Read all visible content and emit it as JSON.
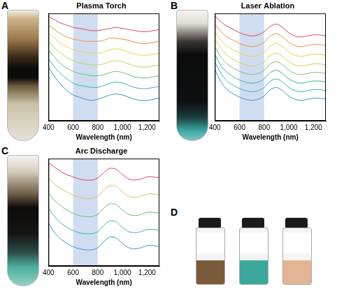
{
  "chart_data": [
    {
      "type": "line",
      "panel": "A",
      "title": "Plasma Torch",
      "x_label": "Wavelength (nm)",
      "x": [
        400,
        450,
        500,
        550,
        600,
        650,
        700,
        750,
        800,
        850,
        900,
        950,
        1000,
        1050,
        1100,
        1150,
        1200,
        1250,
        1300
      ],
      "xlim": [
        400,
        1300
      ],
      "xticks": [
        400,
        600,
        800,
        1000,
        1200
      ],
      "ylim": [
        0,
        10
      ],
      "tick_labels": "x",
      "grid": false,
      "highlight_range": [
        600,
        800
      ],
      "series": [
        {
          "color": "#e0405a",
          "values": [
            9.7,
            9.4,
            9.1,
            8.9,
            8.7,
            8.6,
            8.5,
            8.4,
            8.4,
            8.5,
            8.6,
            8.7,
            8.6,
            8.5,
            8.4,
            8.3,
            8.3,
            8.4,
            8.5
          ]
        },
        {
          "color": "#f08a3c",
          "values": [
            8.9,
            8.5,
            8.1,
            7.8,
            7.6,
            7.5,
            7.4,
            7.4,
            7.4,
            7.5,
            7.7,
            7.7,
            7.6,
            7.5,
            7.3,
            7.2,
            7.2,
            7.3,
            7.4
          ]
        },
        {
          "color": "#e8d33a",
          "values": [
            8.2,
            7.7,
            7.2,
            6.9,
            6.6,
            6.5,
            6.4,
            6.3,
            6.3,
            6.4,
            6.6,
            6.7,
            6.6,
            6.4,
            6.2,
            6.1,
            6.1,
            6.2,
            6.3
          ]
        },
        {
          "color": "#b5d84a",
          "values": [
            7.4,
            6.8,
            6.3,
            5.9,
            5.6,
            5.4,
            5.3,
            5.2,
            5.2,
            5.3,
            5.5,
            5.6,
            5.5,
            5.3,
            5.1,
            5.0,
            5.0,
            5.1,
            5.2
          ]
        },
        {
          "color": "#5cc070",
          "values": [
            6.6,
            5.9,
            5.3,
            4.9,
            4.6,
            4.4,
            4.3,
            4.2,
            4.2,
            4.3,
            4.5,
            4.6,
            4.5,
            4.3,
            4.1,
            4.0,
            4.0,
            4.1,
            4.2
          ]
        },
        {
          "color": "#35b5b0",
          "values": [
            5.8,
            5.0,
            4.4,
            3.9,
            3.5,
            3.3,
            3.2,
            3.1,
            3.1,
            3.3,
            3.5,
            3.6,
            3.5,
            3.3,
            3.1,
            3.0,
            3.0,
            3.1,
            3.2
          ]
        },
        {
          "color": "#3a8fd8",
          "values": [
            5.0,
            4.1,
            3.4,
            2.8,
            2.4,
            2.2,
            2.0,
            1.9,
            2.0,
            2.2,
            2.4,
            2.5,
            2.4,
            2.2,
            2.0,
            1.9,
            1.9,
            2.0,
            2.1
          ]
        }
      ]
    },
    {
      "type": "line",
      "panel": "B",
      "title": "Laser Ablation",
      "x_label": "Wavelength (nm)",
      "x": [
        400,
        450,
        500,
        550,
        600,
        650,
        700,
        750,
        800,
        850,
        900,
        950,
        1000,
        1050,
        1100,
        1150,
        1200,
        1250,
        1300
      ],
      "xlim": [
        400,
        1300
      ],
      "xticks": [
        400,
        600,
        800,
        1000,
        1200
      ],
      "ylim": [
        0,
        10
      ],
      "tick_labels": "x",
      "grid": false,
      "highlight_range": [
        600,
        800
      ],
      "series": [
        {
          "color": "#e0405a",
          "values": [
            9.8,
            9.2,
            8.8,
            8.5,
            8.2,
            8.0,
            7.9,
            8.0,
            8.3,
            8.8,
            9.0,
            8.7,
            8.2,
            7.9,
            7.8,
            7.9,
            8.0,
            8.0,
            7.9
          ]
        },
        {
          "color": "#f08a3c",
          "values": [
            9.0,
            8.3,
            7.8,
            7.5,
            7.2,
            7.0,
            6.9,
            7.0,
            7.3,
            7.9,
            8.1,
            7.8,
            7.3,
            7.0,
            6.9,
            7.0,
            7.1,
            7.1,
            7.0
          ]
        },
        {
          "color": "#e8d33a",
          "values": [
            8.3,
            7.5,
            6.9,
            6.6,
            6.3,
            6.1,
            6.0,
            6.1,
            6.4,
            7.0,
            7.2,
            6.9,
            6.4,
            6.1,
            6.0,
            6.1,
            6.2,
            6.2,
            6.1
          ]
        },
        {
          "color": "#c8d84a",
          "values": [
            7.6,
            6.7,
            6.1,
            5.7,
            5.4,
            5.2,
            5.1,
            5.2,
            5.5,
            6.1,
            6.3,
            6.0,
            5.5,
            5.2,
            5.1,
            5.2,
            5.3,
            5.3,
            5.2
          ]
        },
        {
          "color": "#6cc46a",
          "values": [
            6.9,
            5.9,
            5.3,
            4.9,
            4.6,
            4.4,
            4.3,
            4.4,
            4.7,
            5.3,
            5.5,
            5.2,
            4.7,
            4.4,
            4.3,
            4.4,
            4.5,
            4.5,
            4.4
          ]
        },
        {
          "color": "#35b59a",
          "values": [
            6.2,
            5.1,
            4.5,
            4.1,
            3.8,
            3.6,
            3.5,
            3.6,
            3.9,
            4.5,
            4.7,
            4.4,
            3.9,
            3.6,
            3.5,
            3.6,
            3.7,
            3.7,
            3.6
          ]
        },
        {
          "color": "#30b0c8",
          "values": [
            5.5,
            4.4,
            3.7,
            3.3,
            3.0,
            2.8,
            2.7,
            2.8,
            3.1,
            3.7,
            3.9,
            3.6,
            3.1,
            2.8,
            2.7,
            2.8,
            2.9,
            2.9,
            2.8
          ]
        },
        {
          "color": "#3a8fd8",
          "values": [
            4.8,
            3.6,
            2.9,
            2.5,
            2.2,
            2.0,
            1.9,
            2.0,
            2.3,
            2.9,
            3.1,
            2.8,
            2.3,
            2.0,
            1.9,
            2.0,
            2.1,
            2.1,
            2.0
          ]
        }
      ]
    },
    {
      "type": "line",
      "panel": "C",
      "title": "Arc Discharge",
      "x_label": "Wavelength (nm)",
      "x": [
        400,
        450,
        500,
        550,
        600,
        650,
        700,
        750,
        800,
        850,
        900,
        950,
        1000,
        1050,
        1100,
        1150,
        1200,
        1250,
        1300
      ],
      "xlim": [
        400,
        1300
      ],
      "xticks": [
        400,
        600,
        800,
        1000,
        1200
      ],
      "ylim": [
        0,
        10
      ],
      "tick_labels": "x",
      "grid": false,
      "highlight_range": [
        600,
        800
      ],
      "series": [
        {
          "color": "#e0405a",
          "values": [
            9.6,
            9.2,
            8.8,
            8.5,
            8.3,
            8.1,
            8.0,
            8.0,
            8.2,
            8.7,
            9.1,
            9.0,
            8.5,
            8.1,
            8.0,
            8.1,
            8.3,
            8.3,
            8.2
          ]
        },
        {
          "color": "#c8c060",
          "values": [
            8.2,
            7.6,
            7.2,
            6.9,
            6.6,
            6.4,
            6.3,
            6.3,
            6.5,
            7.1,
            7.5,
            7.4,
            6.9,
            6.5,
            6.4,
            6.5,
            6.7,
            6.7,
            6.6
          ]
        },
        {
          "color": "#5cc070",
          "values": [
            6.8,
            6.1,
            5.6,
            5.2,
            4.9,
            4.7,
            4.6,
            4.6,
            4.8,
            5.4,
            5.8,
            5.7,
            5.2,
            4.8,
            4.7,
            4.8,
            5.0,
            5.0,
            4.9
          ]
        },
        {
          "color": "#35b5b0",
          "values": [
            5.4,
            4.6,
            4.0,
            3.6,
            3.3,
            3.1,
            3.0,
            3.0,
            3.2,
            3.8,
            4.2,
            4.1,
            3.6,
            3.2,
            3.1,
            3.2,
            3.4,
            3.4,
            3.3
          ]
        },
        {
          "color": "#3a8fd8",
          "values": [
            4.0,
            3.1,
            2.5,
            2.1,
            1.8,
            1.6,
            1.5,
            1.5,
            1.7,
            2.3,
            2.7,
            2.6,
            2.1,
            1.7,
            1.6,
            1.7,
            1.9,
            1.9,
            1.8
          ]
        }
      ]
    }
  ],
  "photo": {
    "panel": "D"
  }
}
